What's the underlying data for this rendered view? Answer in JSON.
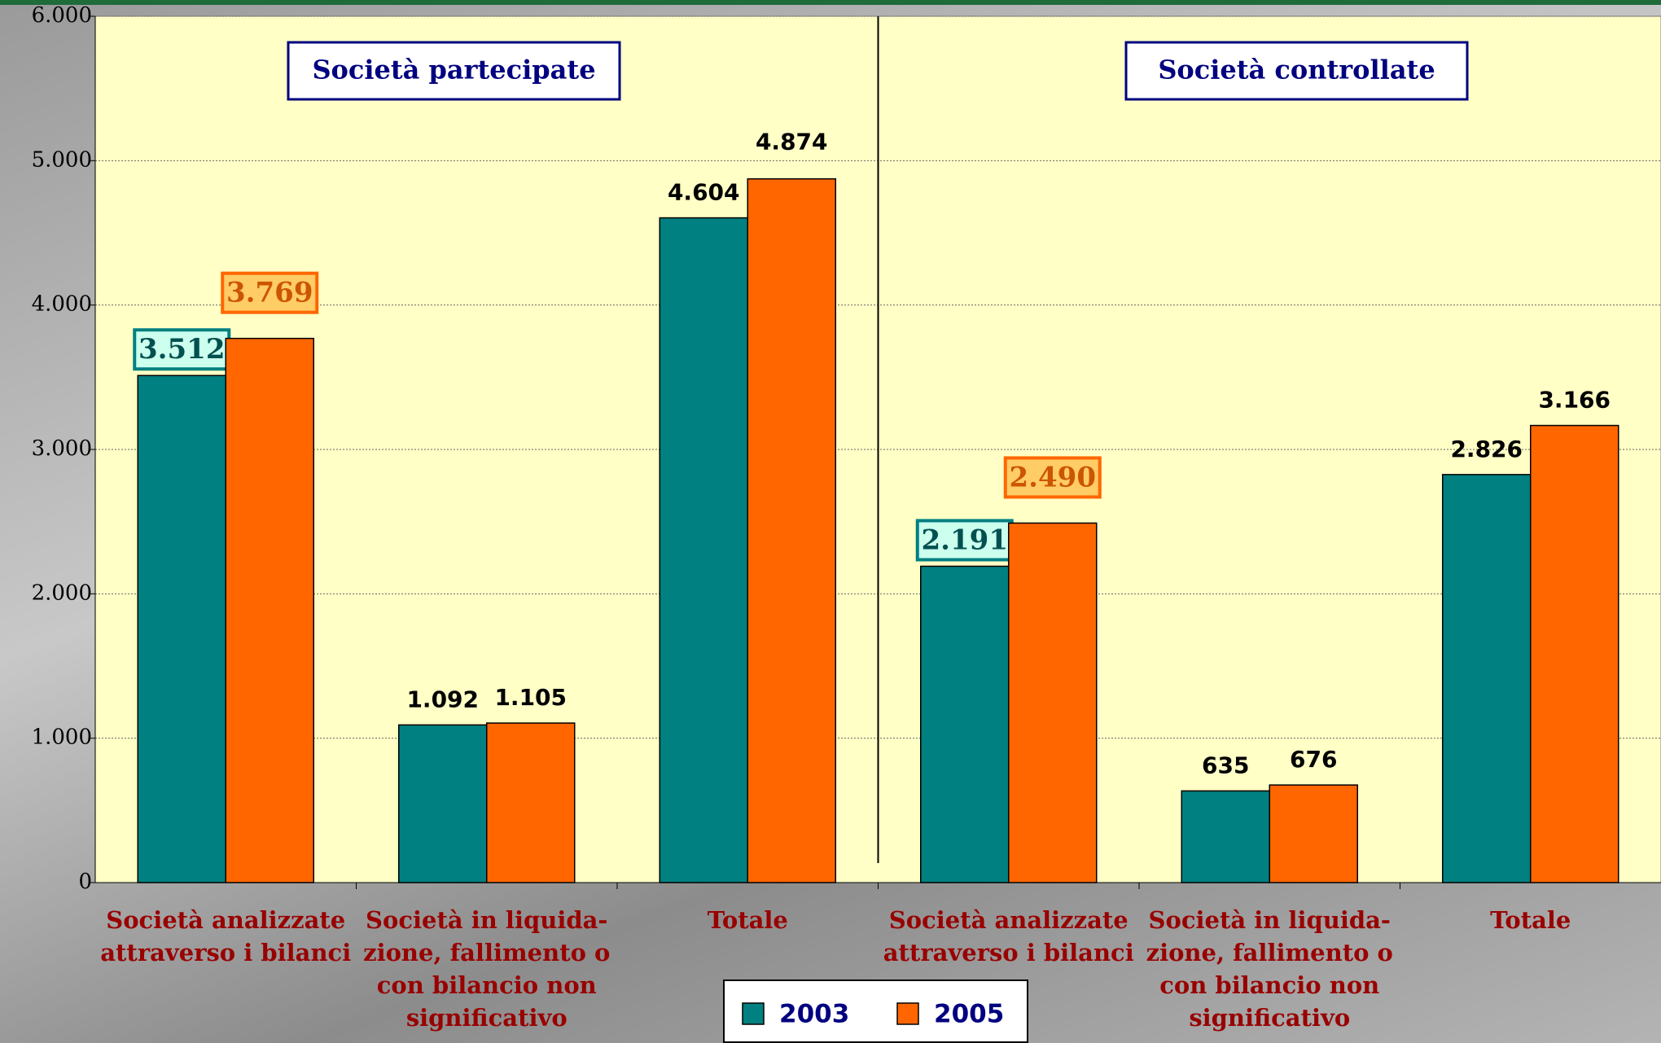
{
  "chart_data": {
    "type": "bar",
    "annotations": [
      "Società partecipate",
      "Società controllate"
    ],
    "categories": [
      "Società analizzate\nattraverso i bilanci",
      "Società in liquida-\nzione, fallimento o\ncon bilancio non\nsignificativo",
      "Totale",
      "Società analizzate\nattraverso i bilanci",
      "Società in liquida-\nzione, fallimento o\ncon bilancio non\nsignificativo",
      "Totale"
    ],
    "series": [
      {
        "name": "2003",
        "color": "#008080",
        "values": [
          3512,
          1092,
          4604,
          2191,
          635,
          2826
        ],
        "value_labels": [
          "3.512",
          "1.092",
          "4.604",
          "2.191",
          "635",
          "2.826"
        ]
      },
      {
        "name": "2005",
        "color": "#ff6600",
        "values": [
          3769,
          1105,
          4874,
          2490,
          676,
          3166
        ],
        "value_labels": [
          "3.769",
          "1.105",
          "4.874",
          "2.490",
          "676",
          "3.166"
        ]
      }
    ],
    "highlighted_categories": [
      0,
      3
    ],
    "ylim": [
      0,
      6000
    ],
    "yticks": [
      0,
      {
        "value": 1000,
        "label": "1.000"
      },
      {
        "value": 2000,
        "label": "2.000"
      },
      {
        "value": 3000,
        "label": "3.000"
      },
      {
        "value": 4000,
        "label": "4.000"
      },
      {
        "value": 5000,
        "label": "5.000"
      },
      {
        "value": 6000,
        "label": "6.000"
      }
    ],
    "grid": true
  }
}
